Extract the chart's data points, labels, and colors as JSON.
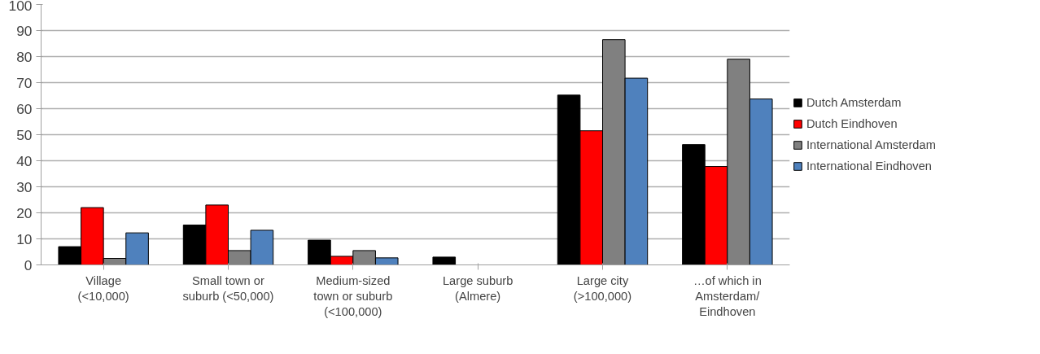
{
  "chart_data": {
    "type": "bar",
    "categories": [
      "Village (<10,000)",
      "Small town or suburb (<50,000)",
      "Medium-sized town or suburb (<100,000)",
      "Large suburb (Almere)",
      "Large city (>100,000)",
      "…of which in Amsterdam/ Eindhoven"
    ],
    "series": [
      {
        "name": "Dutch Amsterdam",
        "color": "#000000",
        "values": [
          7,
          15.3,
          9.5,
          3,
          65.2,
          46.2
        ]
      },
      {
        "name": "Dutch Eindhoven",
        "color": "#ff0000",
        "values": [
          22,
          23,
          3.3,
          null,
          51.5,
          37.8
        ]
      },
      {
        "name": "International Amsterdam",
        "color": "#808080",
        "values": [
          2.5,
          5.5,
          5.5,
          null,
          86.5,
          79
        ]
      },
      {
        "name": "International Eindhoven",
        "color": "#4f81bd",
        "values": [
          12.3,
          13.3,
          2.7,
          null,
          71.7,
          63.7
        ]
      }
    ],
    "ylim": [
      0,
      100
    ],
    "yticks": [
      0,
      10,
      20,
      30,
      40,
      50,
      60,
      70,
      80,
      90,
      100
    ],
    "grid": "y",
    "legend": "right"
  }
}
